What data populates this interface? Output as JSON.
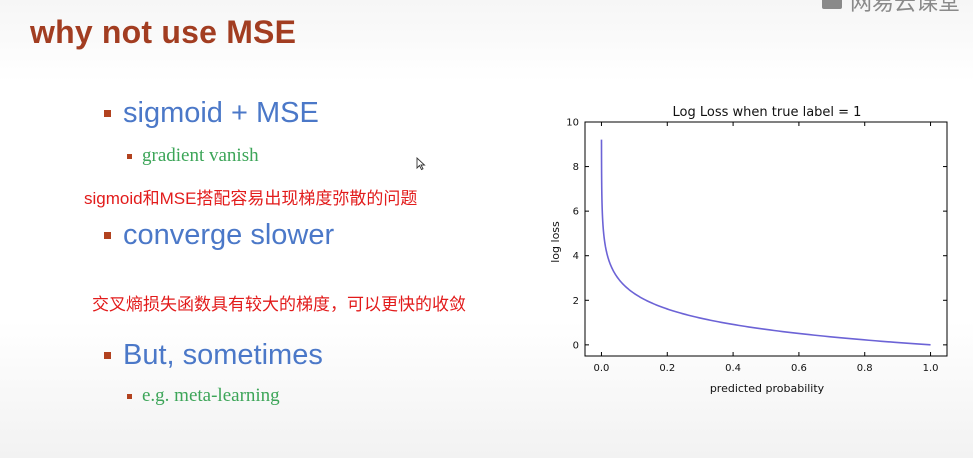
{
  "slide": {
    "title": "why not use MSE",
    "logo_text": "网易云课堂",
    "bullets": [
      {
        "text": "sigmoid + MSE",
        "sub": "gradient vanish"
      },
      {
        "text": "converge slower"
      },
      {
        "text": "But, sometimes",
        "sub": "e.g. meta-learning"
      }
    ],
    "notes": [
      "sigmoid和MSE搭配容易出现梯度弥散的问题",
      "交叉熵损失函数具有较大的梯度，可以更快的收敛"
    ],
    "colors": {
      "title": "#a23d21",
      "bullet": "#4b78c8",
      "sub": "#3ca558",
      "note": "#e21b1b",
      "curve": "#6c63d6"
    }
  },
  "chart_data": {
    "type": "line",
    "title": "Log Loss when true label = 1",
    "xlabel": "predicted probability",
    "ylabel": "log loss",
    "xlim": [
      -0.05,
      1.05
    ],
    "ylim": [
      -0.5,
      10
    ],
    "x_ticks": [
      "0.0",
      "0.2",
      "0.4",
      "0.6",
      "0.8",
      "1.0"
    ],
    "y_ticks": [
      "0",
      "2",
      "4",
      "6",
      "8",
      "10"
    ],
    "grid": false,
    "series": [
      {
        "function": "-ln(x)",
        "x_range": [
          0.0001,
          1.0
        ]
      }
    ]
  }
}
